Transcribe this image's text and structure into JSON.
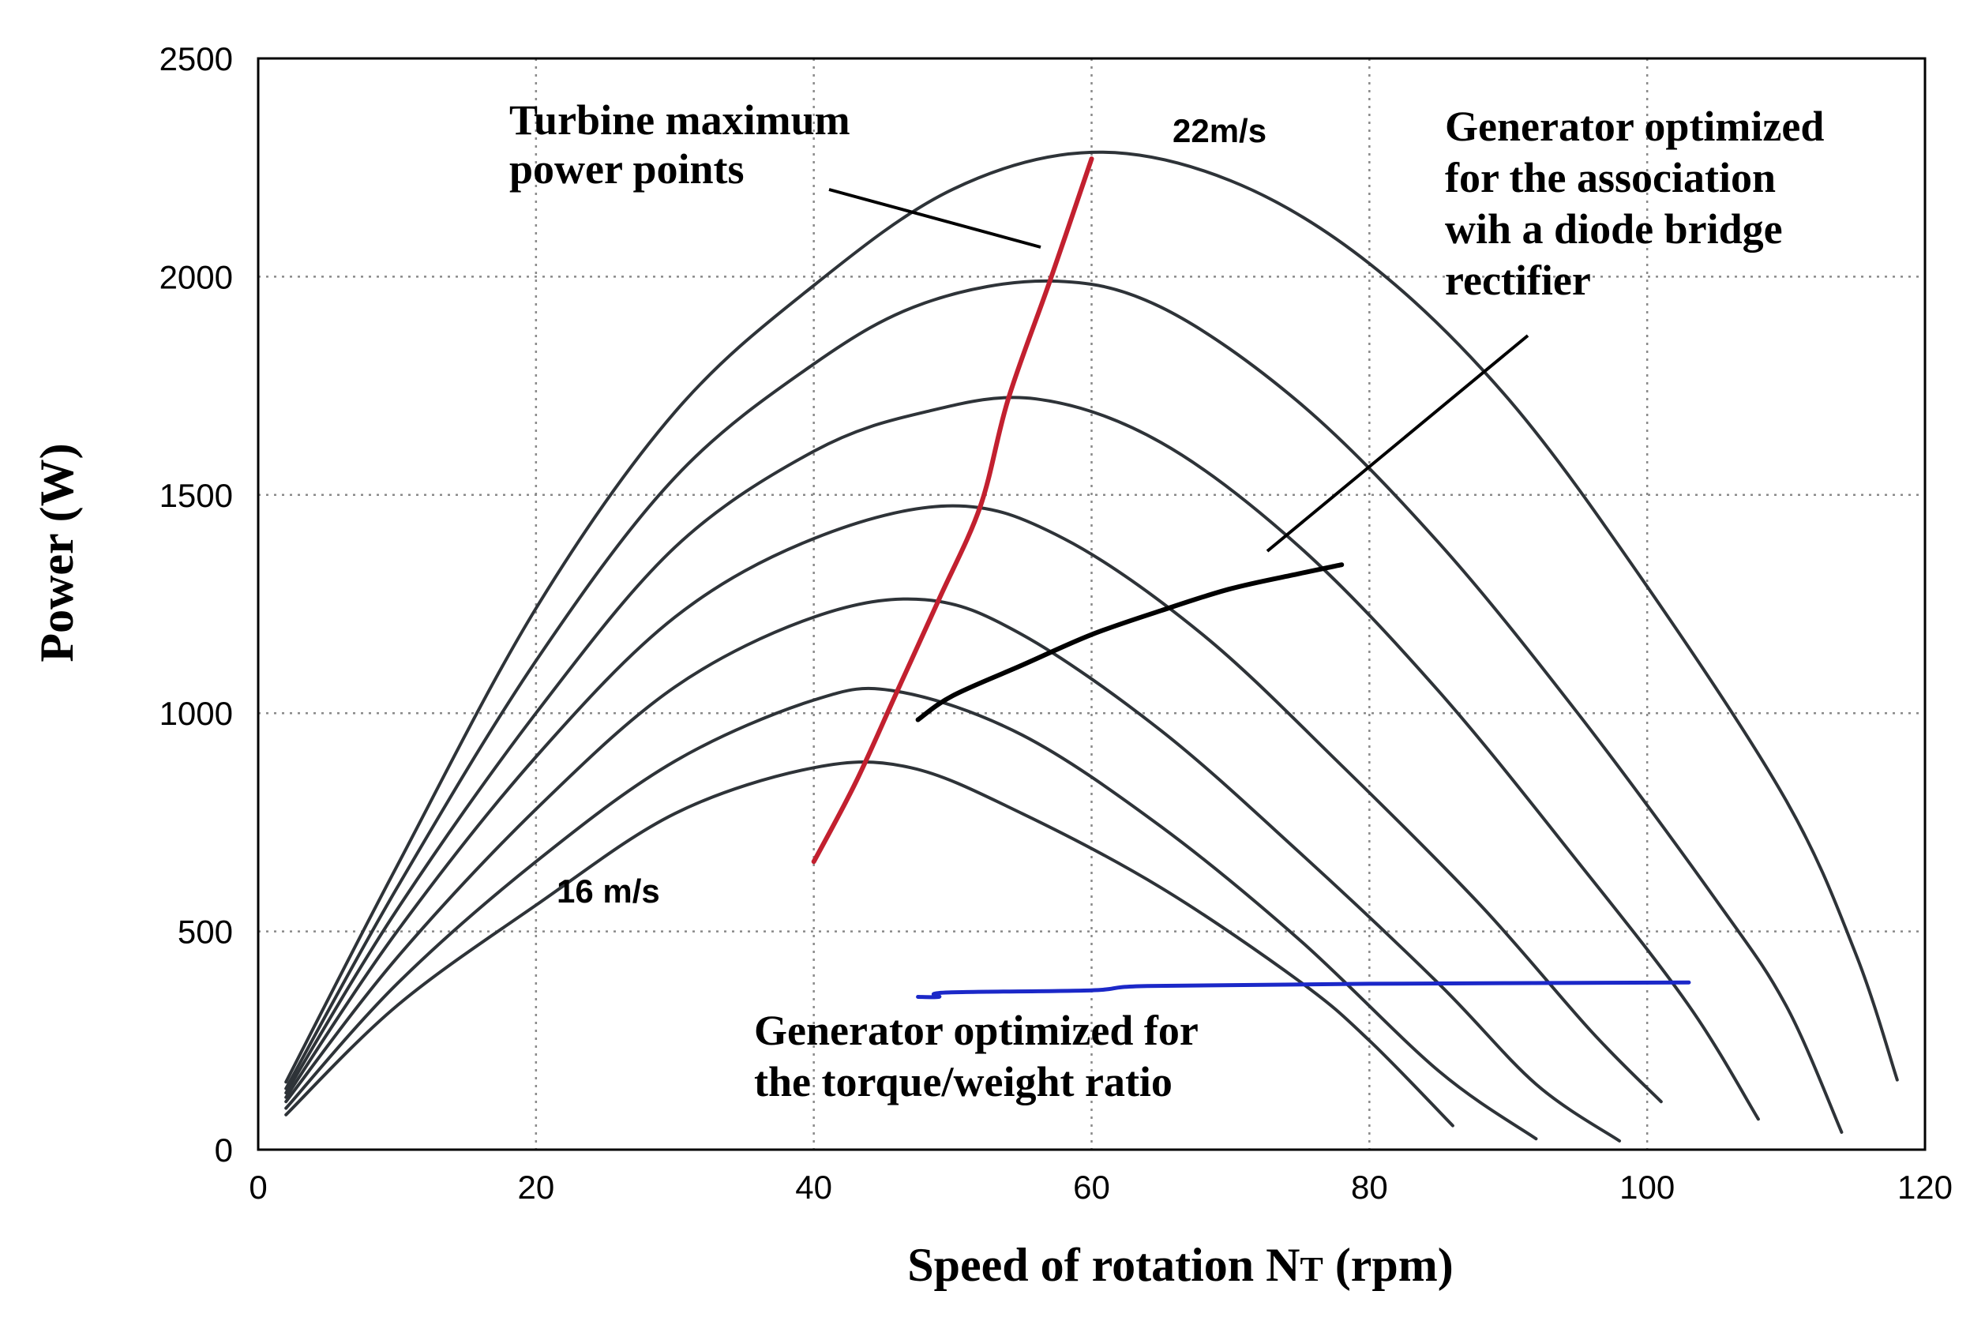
{
  "chart_data": {
    "type": "line",
    "xlabel": "Speed of rotation N",
    "xlabel_subscript": "T",
    "xlabel_unit": "(rpm)",
    "ylabel": "Power (W)",
    "xlim": [
      0,
      120
    ],
    "ylim": [
      0,
      2500
    ],
    "xticks": [
      "0",
      "20",
      "40",
      "60",
      "80",
      "100",
      "120"
    ],
    "yticks": [
      "0",
      "500",
      "1000",
      "1500",
      "2000",
      "2500"
    ],
    "grid": true,
    "wind_curves": [
      {
        "color": "#2e3338",
        "points": [
          [
            2,
            80
          ],
          [
            10,
            330
          ],
          [
            20,
            560
          ],
          [
            30,
            770
          ],
          [
            40,
            875
          ],
          [
            47,
            875
          ],
          [
            55,
            770
          ],
          [
            65,
            600
          ],
          [
            75,
            385
          ],
          [
            80,
            250
          ],
          [
            86,
            55
          ]
        ]
      },
      {
        "color": "#2e3338",
        "points": [
          [
            2,
            95
          ],
          [
            10,
            380
          ],
          [
            20,
            660
          ],
          [
            30,
            890
          ],
          [
            40,
            1030
          ],
          [
            46,
            1050
          ],
          [
            55,
            950
          ],
          [
            65,
            740
          ],
          [
            75,
            480
          ],
          [
            85,
            180
          ],
          [
            92,
            25
          ]
        ]
      },
      {
        "color": "#2e3338",
        "points": [
          [
            2,
            110
          ],
          [
            10,
            440
          ],
          [
            20,
            780
          ],
          [
            30,
            1060
          ],
          [
            40,
            1220
          ],
          [
            48,
            1260
          ],
          [
            55,
            1180
          ],
          [
            65,
            960
          ],
          [
            75,
            680
          ],
          [
            85,
            380
          ],
          [
            92,
            150
          ],
          [
            98,
            20
          ]
        ]
      },
      {
        "color": "#2e3338",
        "points": [
          [
            2,
            120
          ],
          [
            10,
            500
          ],
          [
            20,
            900
          ],
          [
            30,
            1220
          ],
          [
            40,
            1400
          ],
          [
            50,
            1475
          ],
          [
            58,
            1400
          ],
          [
            68,
            1180
          ],
          [
            78,
            880
          ],
          [
            88,
            560
          ],
          [
            96,
            270
          ],
          [
            101,
            110
          ]
        ]
      },
      {
        "color": "#2e3338",
        "points": [
          [
            2,
            130
          ],
          [
            10,
            550
          ],
          [
            20,
            1000
          ],
          [
            30,
            1380
          ],
          [
            40,
            1600
          ],
          [
            48,
            1690
          ],
          [
            56,
            1720
          ],
          [
            65,
            1620
          ],
          [
            75,
            1380
          ],
          [
            85,
            1050
          ],
          [
            95,
            660
          ],
          [
            103,
            330
          ],
          [
            108,
            70
          ]
        ]
      },
      {
        "color": "#2e3338",
        "points": [
          [
            2,
            140
          ],
          [
            10,
            600
          ],
          [
            20,
            1120
          ],
          [
            30,
            1540
          ],
          [
            40,
            1800
          ],
          [
            48,
            1940
          ],
          [
            57,
            1990
          ],
          [
            65,
            1930
          ],
          [
            75,
            1710
          ],
          [
            85,
            1390
          ],
          [
            95,
            1000
          ],
          [
            105,
            570
          ],
          [
            110,
            330
          ],
          [
            114,
            40
          ]
        ]
      },
      {
        "color": "#2e3338",
        "points": [
          [
            2,
            155
          ],
          [
            10,
            650
          ],
          [
            20,
            1240
          ],
          [
            30,
            1690
          ],
          [
            40,
            1980
          ],
          [
            50,
            2200
          ],
          [
            60,
            2285
          ],
          [
            70,
            2220
          ],
          [
            80,
            2030
          ],
          [
            90,
            1720
          ],
          [
            100,
            1290
          ],
          [
            110,
            800
          ],
          [
            115,
            450
          ],
          [
            118,
            160
          ]
        ]
      }
    ],
    "series": [
      {
        "name": "Turbine maximum power points",
        "color": "#c2202f",
        "points": [
          [
            40,
            660
          ],
          [
            43,
            840
          ],
          [
            46,
            1050
          ],
          [
            49,
            1260
          ],
          [
            52,
            1475
          ],
          [
            54,
            1720
          ],
          [
            57,
            1990
          ],
          [
            60,
            2270
          ]
        ]
      },
      {
        "name": "Generator optimized for the association wih a diode bridge rectifier",
        "color": "#000000",
        "points": [
          [
            47.5,
            985
          ],
          [
            50,
            1040
          ],
          [
            55,
            1110
          ],
          [
            60,
            1180
          ],
          [
            65,
            1235
          ],
          [
            70,
            1285
          ],
          [
            75,
            1320
          ],
          [
            78,
            1340
          ]
        ]
      },
      {
        "name": "Generator optimized for the torque/weight ratio",
        "color": "#1b28c8",
        "points": [
          [
            47.5,
            350
          ],
          [
            49,
            350
          ],
          [
            49.5,
            360
          ],
          [
            60,
            365
          ],
          [
            64,
            375
          ],
          [
            80,
            380
          ],
          [
            103,
            383
          ]
        ]
      }
    ],
    "annotations": {
      "turbine": [
        "Turbine maximum",
        "power points"
      ],
      "diode": [
        "Generator optimized",
        "for the association",
        "wih a diode bridge",
        "rectifier"
      ],
      "torque": [
        "Generator optimized for",
        "the torque/weight ratio"
      ],
      "wind_high": "22m/s",
      "wind_low": "16 m/s"
    }
  }
}
